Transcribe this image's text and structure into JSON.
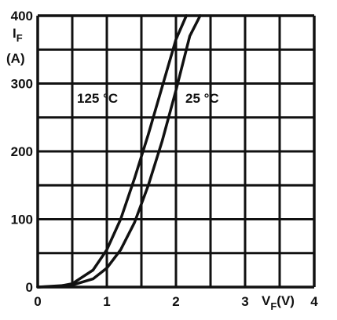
{
  "chart_data": {
    "type": "line",
    "xlim": [
      0,
      4
    ],
    "ylim": [
      0,
      400
    ],
    "grid": true,
    "x_ticks": [
      "0",
      "1",
      "2",
      "3",
      "4"
    ],
    "y_ticks": [
      "0",
      "100",
      "200",
      "300",
      "400"
    ],
    "x_label": {
      "main": "V",
      "sub": "F",
      "unit": "(V)"
    },
    "y_label": {
      "main": "I",
      "sub": "F",
      "unit": "(A)"
    },
    "series": [
      {
        "name": "125 °C",
        "x": [
          0.0,
          0.3,
          0.5,
          0.8,
          1.0,
          1.2,
          1.4,
          1.6,
          1.8,
          2.0,
          2.15
        ],
        "y": [
          0,
          1,
          5,
          25,
          55,
          100,
          160,
          225,
          295,
          365,
          400
        ]
      },
      {
        "name": "25 °C",
        "x": [
          0.0,
          0.5,
          0.8,
          1.0,
          1.2,
          1.4,
          1.6,
          1.8,
          2.0,
          2.2,
          2.35
        ],
        "y": [
          0,
          3,
          12,
          28,
          55,
          95,
          150,
          215,
          290,
          370,
          400
        ]
      }
    ]
  }
}
